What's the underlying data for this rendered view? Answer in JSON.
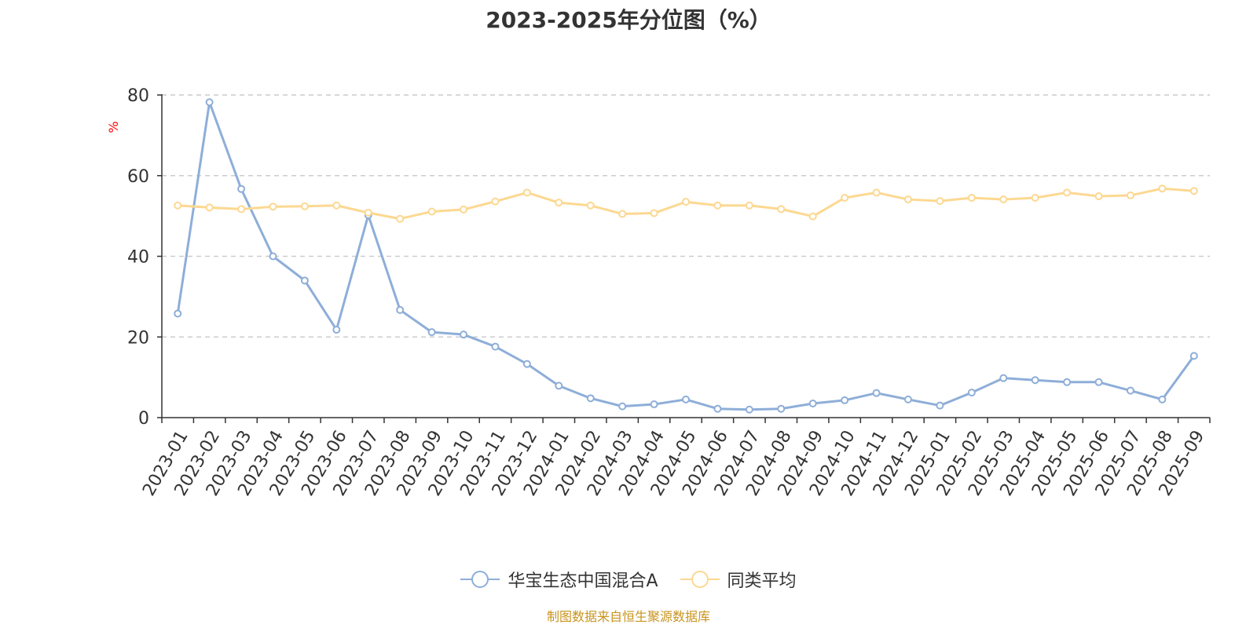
{
  "chart_data": {
    "type": "line",
    "title": "2023-2025年分位图（%）",
    "ylabel": "%",
    "ylim": [
      0,
      80
    ],
    "yticks": [
      0,
      20,
      40,
      60,
      80
    ],
    "grid": true,
    "legend_position": "bottom-center",
    "categories": [
      "2023-01",
      "2023-02",
      "2023-03",
      "2023-04",
      "2023-05",
      "2023-06",
      "2023-07",
      "2023-08",
      "2023-09",
      "2023-10",
      "2023-11",
      "2023-12",
      "2024-01",
      "2024-02",
      "2024-03",
      "2024-04",
      "2024-05",
      "2024-06",
      "2024-07",
      "2024-08",
      "2024-09",
      "2024-10",
      "2024-11",
      "2024-12",
      "2025-01",
      "2025-02",
      "2025-03",
      "2025-04",
      "2025-05",
      "2025-06",
      "2025-07",
      "2025-08",
      "2025-09"
    ],
    "series": [
      {
        "name": "华宝生态中国混合A",
        "color": "#8eaed8",
        "values": [
          25.8,
          78.2,
          56.7,
          40.0,
          34.0,
          21.8,
          50.2,
          26.7,
          21.2,
          20.6,
          17.6,
          13.3,
          7.9,
          4.8,
          2.8,
          3.3,
          4.5,
          2.2,
          2.0,
          2.2,
          3.5,
          4.3,
          6.1,
          4.5,
          3.0,
          6.2,
          9.8,
          9.3,
          8.8,
          8.8,
          6.7,
          4.5,
          15.3
        ]
      },
      {
        "name": "同类平均",
        "color": "#fcd891",
        "values": [
          52.6,
          52.1,
          51.7,
          52.3,
          52.4,
          52.6,
          50.8,
          49.3,
          51.1,
          51.6,
          53.6,
          55.8,
          53.3,
          52.6,
          50.5,
          50.7,
          53.5,
          52.6,
          52.6,
          51.7,
          49.9,
          54.5,
          55.8,
          54.1,
          53.7,
          54.5,
          54.1,
          54.5,
          55.8,
          54.9,
          55.1,
          56.8,
          56.2
        ]
      }
    ]
  },
  "footer": {
    "source": "制图数据来自恒生聚源数据库",
    "source_color": "#c8941f"
  },
  "style": {
    "axis_color": "#333333",
    "grid_color": "#cccccc",
    "ylabel_color": "#ff0000"
  }
}
